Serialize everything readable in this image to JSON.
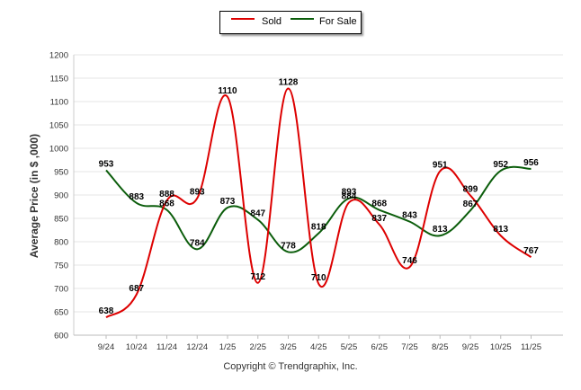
{
  "chart_data": {
    "type": "line",
    "title": "",
    "xlabel": "",
    "ylabel": "Average Price (in $ ,000)",
    "ylim": [
      600,
      1200
    ],
    "yticks": [
      600,
      650,
      700,
      750,
      800,
      850,
      900,
      950,
      1000,
      1050,
      1100,
      1150,
      1200
    ],
    "categories": [
      "9/24",
      "10/24",
      "11/24",
      "12/24",
      "1/25",
      "2/25",
      "3/25",
      "4/25",
      "5/25",
      "6/25",
      "7/25",
      "8/25",
      "9/25",
      "10/25",
      "11/25"
    ],
    "legend_position": "top-center",
    "series": [
      {
        "name": "Sold",
        "color": "#dd0000",
        "values": [
          638,
          687,
          888,
          893,
          1110,
          712,
          1128,
          710,
          884,
          837,
          746,
          951,
          899,
          813,
          767
        ]
      },
      {
        "name": "For Sale",
        "color": "#0b5d0b",
        "values": [
          953,
          883,
          868,
          784,
          873,
          847,
          778,
          818,
          893,
          868,
          843,
          813,
          867,
          952,
          956
        ]
      }
    ]
  },
  "footer": "Copyright © Trendgraphix, Inc."
}
